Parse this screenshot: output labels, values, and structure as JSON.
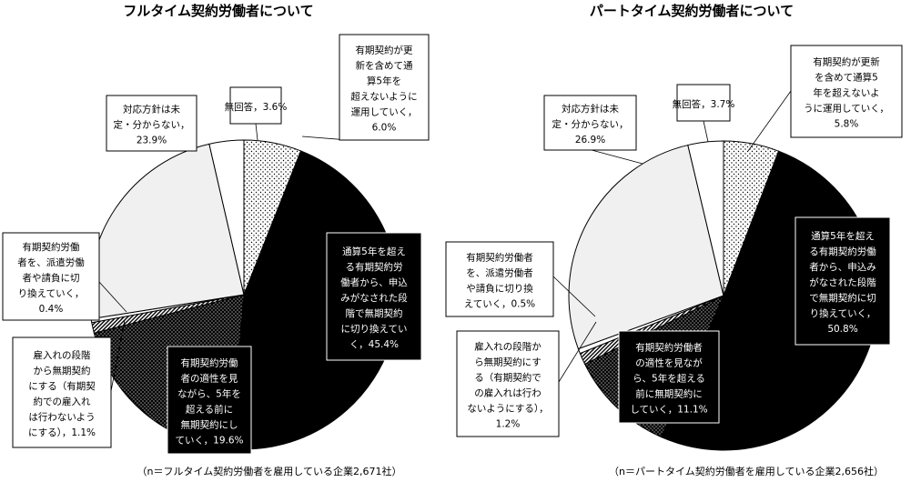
{
  "chart_data": [
    {
      "type": "pie",
      "title": "フルタイム契約労働者について",
      "unit": "%",
      "slices": [
        {
          "label": [
            "有期契約が更",
            "新を含めて通",
            "算5年を",
            "超えないように",
            "運用していく，"
          ],
          "value": 6.0,
          "value_label": "6.0%",
          "fill": "dots"
        },
        {
          "label": [
            "通算5年を超え",
            "る有期契約労",
            "働者から、申込",
            "みがなされた段",
            "階で無期契約",
            "に切り換えてい",
            "く，"
          ],
          "value": 45.4,
          "value_label": "45.4%",
          "fill": "black"
        },
        {
          "label": [
            "有期契約労働",
            "者の適性を見",
            "ながら、5年を",
            "超える前に",
            "無期契約にし",
            "ていく，"
          ],
          "value": 19.6,
          "value_label": "19.6%",
          "fill": "dark-dots"
        },
        {
          "label": [
            "雇入れの段階",
            "から無期契約",
            "にする（有期契",
            "約での雇入れ",
            "は行わないよう",
            "にする），"
          ],
          "value": 1.1,
          "value_label": "1.1%",
          "fill": "stripes"
        },
        {
          "label": [
            "有期契約労働",
            "者を、派遣労働",
            "者や請負に切",
            "り換えていく，"
          ],
          "value": 0.4,
          "value_label": "0.4%",
          "fill": "white"
        },
        {
          "label": [
            "対応方針は未",
            "定・分からない，"
          ],
          "value": 23.9,
          "value_label": "23.9%",
          "fill": "light-gray"
        },
        {
          "label": [
            "無回答，"
          ],
          "value": 3.6,
          "value_label": "3.6%",
          "fill": "white"
        }
      ],
      "note": "（n＝フルタイム契約労働者を雇用している企業2,671社）"
    },
    {
      "type": "pie",
      "title": "パートタイム契約労働者について",
      "unit": "%",
      "slices": [
        {
          "label": [
            "有期契約が更新",
            "を含めて通算5",
            "年を超えないよ",
            "うに運用していく，"
          ],
          "value": 5.8,
          "value_label": "5.8%",
          "fill": "dots"
        },
        {
          "label": [
            "通算5年を超え",
            "る有期契約労働",
            "者から、申込み",
            "がなされた段階",
            "で無期契約に切",
            "り換えていく，"
          ],
          "value": 50.8,
          "value_label": "50.8%",
          "fill": "black"
        },
        {
          "label": [
            "有期契約労働者",
            "の適性を見なが",
            "ら、5年を超える",
            "前に無期契約に",
            "していく，"
          ],
          "value": 11.1,
          "value_label": "11.1%",
          "fill": "dark-dots"
        },
        {
          "label": [
            "雇入れの段階か",
            "ら無期契約にす",
            "る（有期契約で",
            "の雇入れは行わ",
            "ないようにする），"
          ],
          "value": 1.2,
          "value_label": "1.2%",
          "fill": "stripes"
        },
        {
          "label": [
            "有期契約労働者",
            "を、派遣労働者",
            "や請負に切り換",
            "えていく，"
          ],
          "value": 0.5,
          "value_label": "0.5%",
          "fill": "white"
        },
        {
          "label": [
            "対応方針は未",
            "定・分からない，"
          ],
          "value": 26.9,
          "value_label": "26.9%",
          "fill": "light-gray"
        },
        {
          "label": [
            "無回答，"
          ],
          "value": 3.7,
          "value_label": "3.7%",
          "fill": "white"
        }
      ],
      "note": "（n＝パートタイム契約労働者を雇用している企業2,656社）"
    }
  ]
}
